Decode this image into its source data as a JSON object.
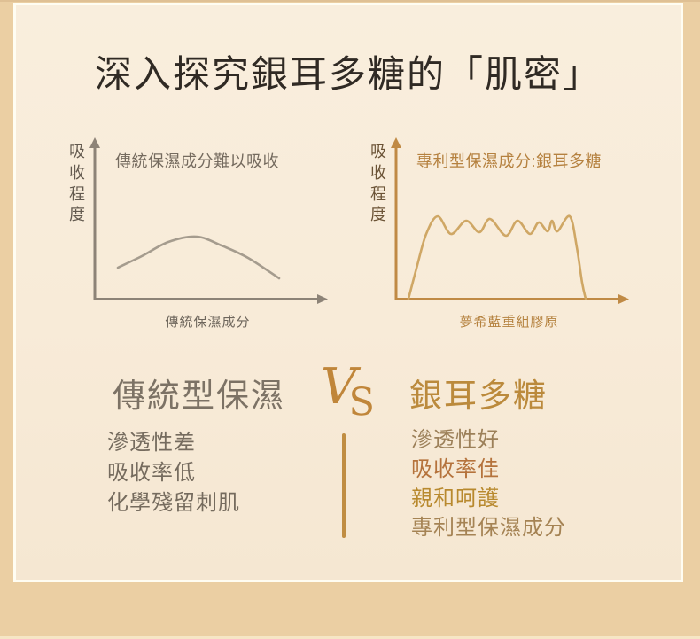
{
  "title": "深入探究銀耳多糖的「肌密」",
  "colors": {
    "outer_background": "#ebcfa3",
    "card_background": "#f8ecdb",
    "card_border": "#fffdf2",
    "title_text": "#302a24"
  },
  "chart_data": [
    {
      "type": "line",
      "side": "left",
      "annotation": "傳統保濕成分難以吸收",
      "y_axis_label": "吸收程度",
      "x_axis_label": "傳統保濕成分",
      "description": "low broad hump: traditional moisturizing ingredient poorly absorbed",
      "axis_color": "#8d8377",
      "curve_color": "#a59c8e",
      "annotation_color": "#756b5f",
      "ylabel_color": "#635a4f",
      "xlabel_color": "#6e665c",
      "points": [
        [
          53,
          148
        ],
        [
          80,
          135
        ],
        [
          110,
          119
        ],
        [
          142,
          113
        ],
        [
          170,
          123
        ],
        [
          200,
          137
        ],
        [
          235,
          160
        ]
      ]
    },
    {
      "type": "line",
      "side": "right",
      "annotation": "專利型保濕成分:銀耳多糖",
      "y_axis_label": "吸收程度",
      "x_axis_label": "夢希藍重組膠原",
      "description": "tall sustained wavy plateau: patented tremella polysaccharide highly absorbed",
      "axis_color": "#c08a45",
      "curve_color": "#cfa765",
      "annotation_color": "#b5813f",
      "ylabel_color": "#6b5336",
      "xlabel_color": "#b5823f",
      "points": [
        [
          41,
          183
        ],
        [
          51,
          145
        ],
        [
          61,
          110
        ],
        [
          74,
          90
        ],
        [
          89,
          110
        ],
        [
          106,
          95
        ],
        [
          121,
          108
        ],
        [
          133,
          93
        ],
        [
          151,
          112
        ],
        [
          164,
          95
        ],
        [
          178,
          110
        ],
        [
          188,
          97
        ],
        [
          198,
          107
        ],
        [
          203,
          95
        ],
        [
          209,
          107
        ],
        [
          223,
          90
        ],
        [
          231,
          125
        ],
        [
          237,
          165
        ],
        [
          241,
          183
        ]
      ]
    }
  ],
  "comparison": {
    "vs": [
      "V",
      "S"
    ],
    "vs_color": "#c0863a",
    "divider_color": "#c08d42",
    "left": {
      "heading": "傳統型保濕",
      "heading_color": "#7c7265",
      "items": [
        {
          "text": "滲透性差",
          "color": "#756b5e"
        },
        {
          "text": "吸收率低",
          "color": "#756b5e"
        },
        {
          "text": "化學殘留刺肌",
          "color": "#756b5e"
        }
      ]
    },
    "right": {
      "heading": "銀耳多糖",
      "heading_color": "#bb8a3c",
      "items": [
        {
          "text": "滲透性好",
          "color": "#9c8059"
        },
        {
          "text": "吸收率佳",
          "color": "#b5733c"
        },
        {
          "text": "親和呵護",
          "color": "#b8892e"
        },
        {
          "text": "專利型保濕成分",
          "color": "#a58354"
        }
      ]
    }
  }
}
